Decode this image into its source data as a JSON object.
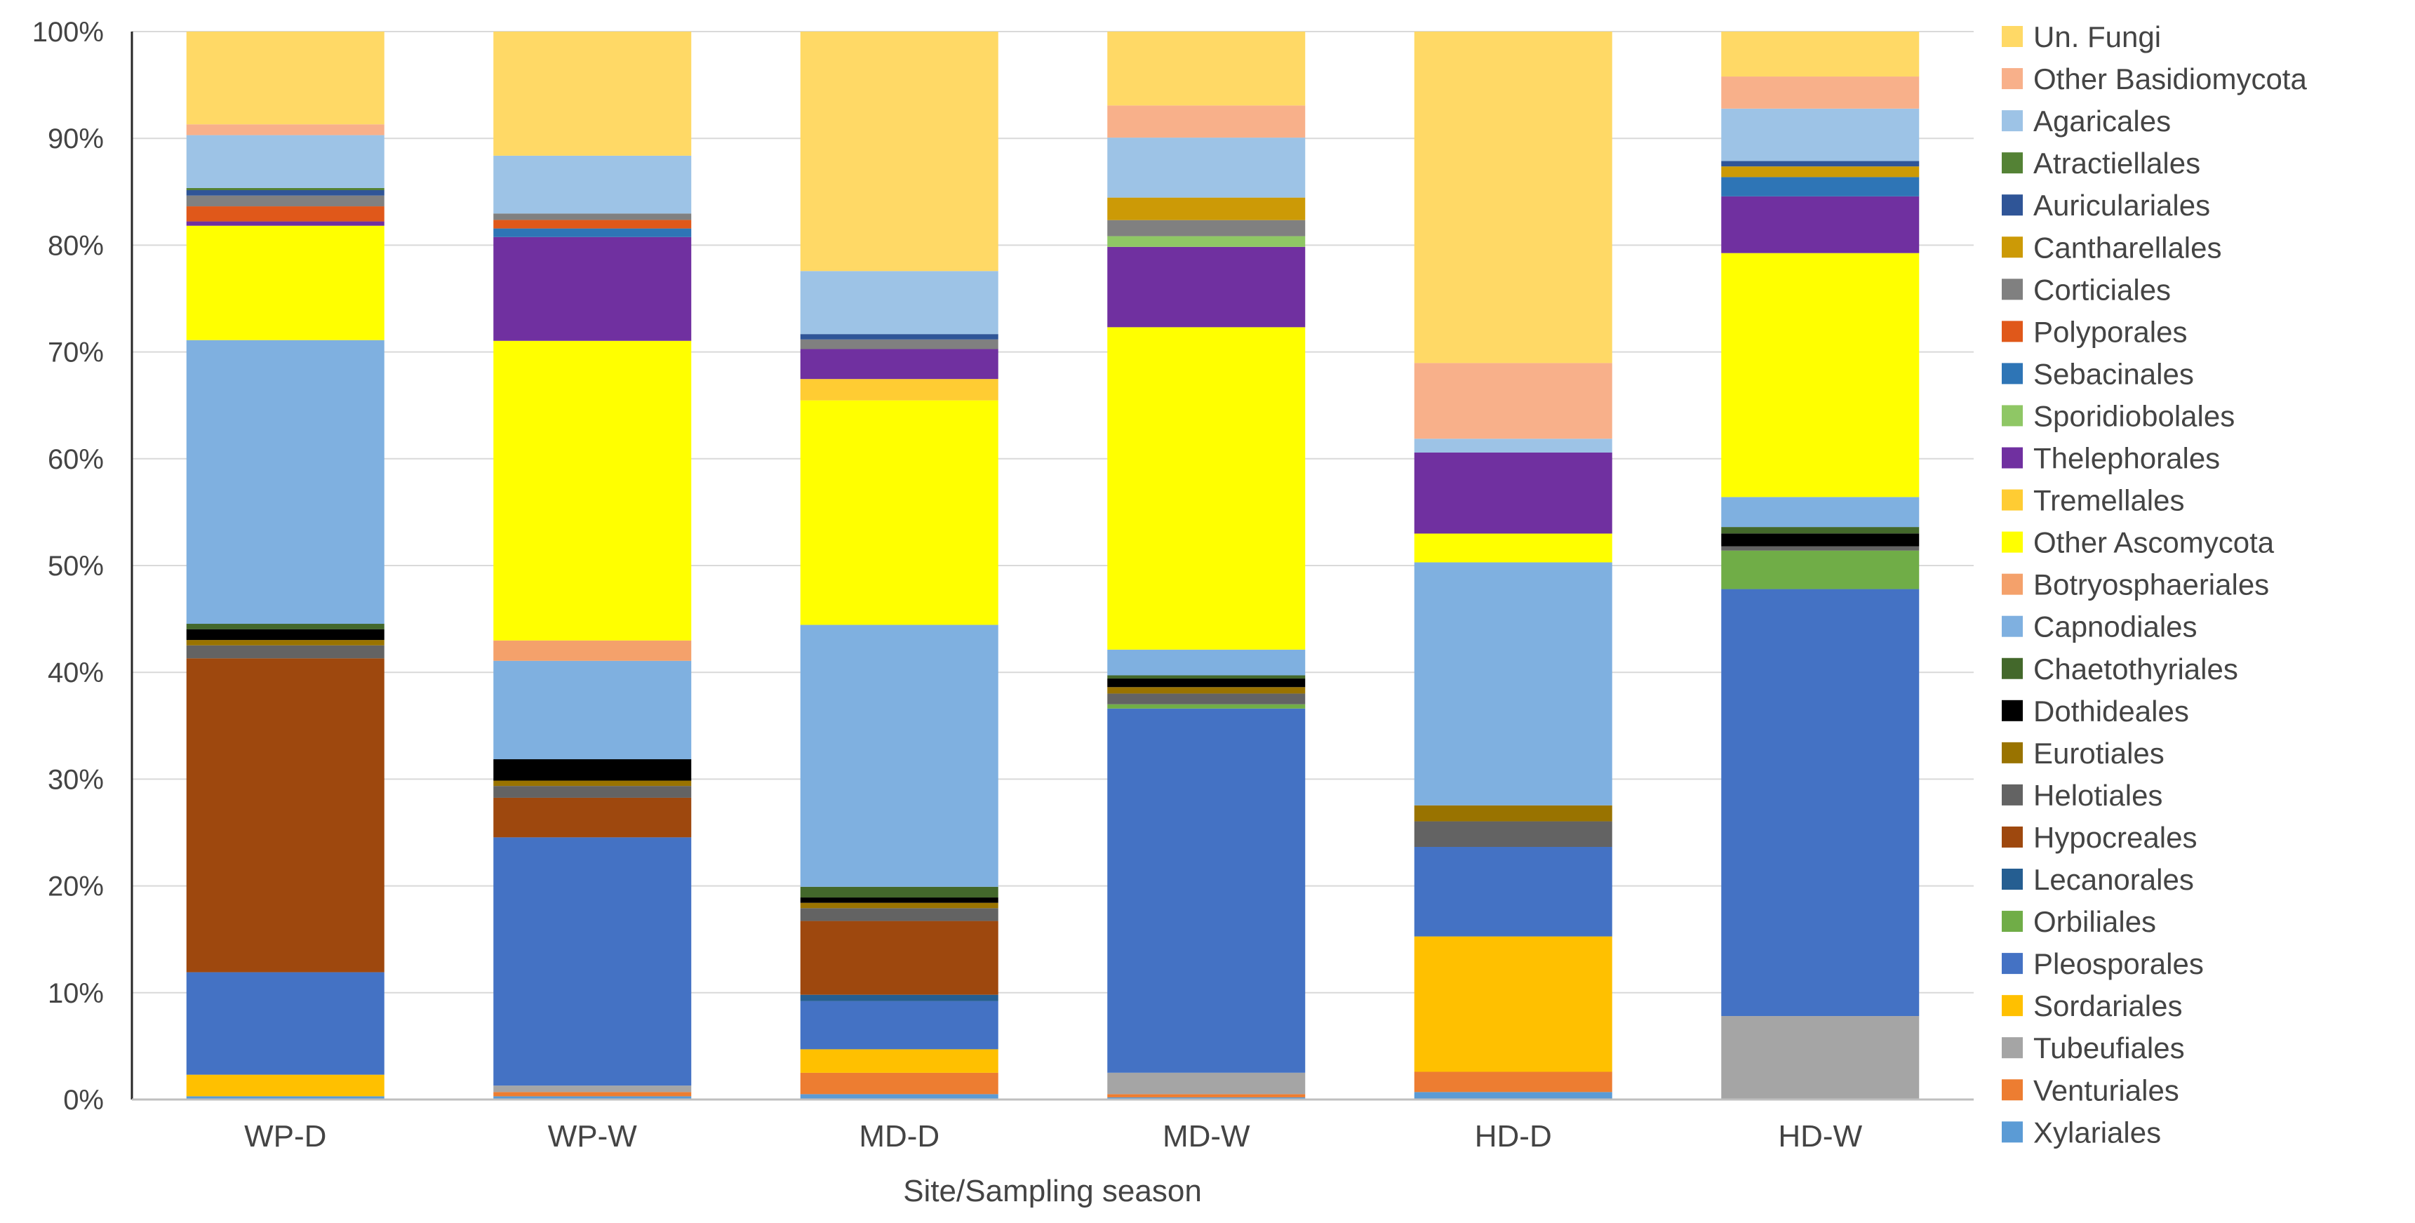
{
  "chart_data": {
    "type": "bar",
    "stacked": true,
    "normalized": true,
    "title": "",
    "xlabel": "Site/Sampling season",
    "ylabel": "",
    "ylim": [
      0,
      100
    ],
    "y_ticks": [
      "0%",
      "10%",
      "20%",
      "30%",
      "40%",
      "50%",
      "60%",
      "70%",
      "80%",
      "90%",
      "100%"
    ],
    "legend_position": "right",
    "categories": [
      "WP-D",
      "WP-W",
      "MD-D",
      "MD-W",
      "HD-D",
      "HD-W"
    ],
    "series": [
      {
        "name": "Xylariales",
        "color": "#5b9bd5",
        "values": [
          0.3,
          0.3,
          0.5,
          0.2,
          0.7,
          0
        ]
      },
      {
        "name": "Venturiales",
        "color": "#ed7d31",
        "values": [
          0,
          0.4,
          2.0,
          0.3,
          1.9,
          0
        ]
      },
      {
        "name": "Tubeufiales",
        "color": "#a5a5a5",
        "values": [
          0,
          0.6,
          0,
          2.0,
          0,
          7.8
        ]
      },
      {
        "name": "Sordariales",
        "color": "#ffc000",
        "values": [
          2.0,
          0,
          2.2,
          0,
          12.7,
          0
        ]
      },
      {
        "name": "Pleosporales",
        "color": "#4472c4",
        "values": [
          9.5,
          23.2,
          4.5,
          34.0,
          8.4,
          39.9
        ]
      },
      {
        "name": "Orbiliales",
        "color": "#70ad47",
        "values": [
          0,
          0,
          0,
          0.4,
          0,
          3.6
        ]
      },
      {
        "name": "Lecanorales",
        "color": "#255e91",
        "values": [
          0,
          0,
          0.6,
          0,
          0,
          0
        ]
      },
      {
        "name": "Hypocreales",
        "color": "#9e480e",
        "values": [
          29.1,
          3.7,
          6.9,
          0,
          0,
          0
        ]
      },
      {
        "name": "Helotiales",
        "color": "#636363",
        "values": [
          1.2,
          1.1,
          1.2,
          1.0,
          2.4,
          0.4
        ]
      },
      {
        "name": "Eurotiales",
        "color": "#997300",
        "values": [
          0.5,
          0.5,
          0.5,
          0.6,
          1.5,
          0
        ]
      },
      {
        "name": "Dothideales",
        "color": "#000000",
        "values": [
          1.0,
          2.0,
          0.5,
          0.8,
          0,
          1.2
        ]
      },
      {
        "name": "Chaetothyriales",
        "color": "#43682b",
        "values": [
          0.5,
          0,
          1.0,
          0.3,
          0,
          0.6
        ]
      },
      {
        "name": "Capnodiales",
        "color": "#7fb0e0",
        "values": [
          26.3,
          9.2,
          24.5,
          2.4,
          22.8,
          2.8
        ]
      },
      {
        "name": "Botryosphaeriales",
        "color": "#f4a16b",
        "values": [
          0,
          1.9,
          0,
          0,
          0,
          0
        ]
      },
      {
        "name": "Other Ascomycota",
        "color": "#ffff00",
        "values": [
          10.6,
          28.0,
          21.0,
          30.1,
          2.7,
          22.8
        ]
      },
      {
        "name": "Tremellales",
        "color": "#ffcc33",
        "values": [
          0,
          0,
          2.0,
          0,
          0,
          0
        ]
      },
      {
        "name": "Thelephorales",
        "color": "#7030a0",
        "values": [
          0.4,
          9.7,
          2.8,
          7.5,
          7.6,
          5.3
        ]
      },
      {
        "name": "Sporidiobolales",
        "color": "#8fc765",
        "values": [
          0,
          0,
          0,
          1.0,
          0,
          0
        ]
      },
      {
        "name": "Sebacinales",
        "color": "#2e75b6",
        "values": [
          0,
          0.8,
          0,
          0,
          0,
          1.8
        ]
      },
      {
        "name": "Polyporales",
        "color": "#e0581a",
        "values": [
          1.4,
          0.8,
          0,
          0,
          0,
          0
        ]
      },
      {
        "name": "Corticiales",
        "color": "#808080",
        "values": [
          1.0,
          0.6,
          0.9,
          1.5,
          0,
          0
        ]
      },
      {
        "name": "Cantharellales",
        "color": "#cc9a06",
        "values": [
          0,
          0,
          0,
          2.1,
          0,
          1.0
        ]
      },
      {
        "name": "Auriculariales",
        "color": "#2f5597",
        "values": [
          0.5,
          0,
          0.5,
          0,
          0,
          0.5
        ]
      },
      {
        "name": "Atractiellales",
        "color": "#548235",
        "values": [
          0.2,
          0,
          0,
          0,
          0,
          0
        ]
      },
      {
        "name": "Agaricales",
        "color": "#9dc3e6",
        "values": [
          4.9,
          5.4,
          5.9,
          5.6,
          1.3,
          4.9
        ]
      },
      {
        "name": "Other Basidiomycota",
        "color": "#f8b08a",
        "values": [
          1.0,
          0,
          0,
          3.0,
          7.1,
          3.0
        ]
      },
      {
        "name": "Un. Fungi",
        "color": "#ffd966",
        "values": [
          8.6,
          11.6,
          22.4,
          6.9,
          31.1,
          4.2
        ]
      }
    ]
  }
}
